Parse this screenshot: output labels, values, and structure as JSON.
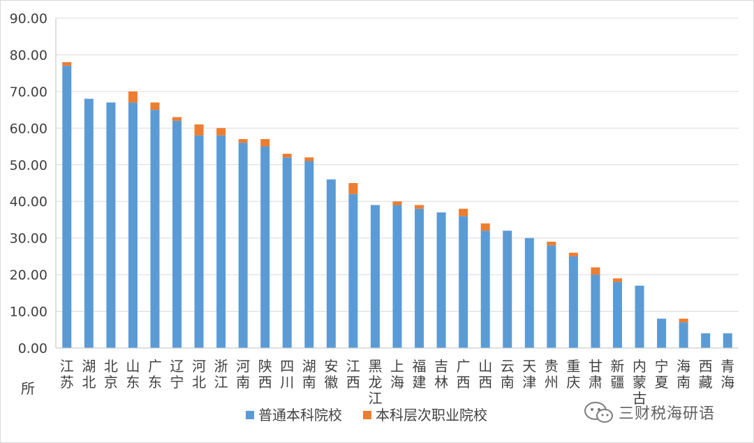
{
  "chart_data": {
    "type": "bar",
    "stacked": true,
    "title": "",
    "xlabel": "",
    "ylabel": "",
    "ylim": [
      0,
      90
    ],
    "yticks": [
      "0.00",
      "10.00",
      "20.00",
      "30.00",
      "40.00",
      "50.00",
      "60.00",
      "70.00",
      "80.00",
      "90.00"
    ],
    "grid": true,
    "legend_position": "bottom",
    "categories": [
      "江苏",
      "湖北",
      "北京",
      "山东",
      "广东",
      "辽宁",
      "河北",
      "浙江",
      "河南",
      "陕西",
      "四川",
      "湖南",
      "安徽",
      "江西",
      "黑龙江",
      "上海",
      "福建",
      "吉林",
      "广西",
      "山西",
      "云南",
      "天津",
      "贵州",
      "重庆",
      "甘肃",
      "新疆",
      "内蒙古",
      "宁夏",
      "海南",
      "西藏",
      "青海"
    ],
    "series": [
      {
        "name": "普通本科院校",
        "color": "#5b9bd5",
        "values": [
          77,
          68,
          67,
          67,
          65,
          62,
          58,
          58,
          56,
          55,
          52,
          51,
          46,
          42,
          39,
          39,
          38,
          37,
          36,
          32,
          32,
          30,
          28,
          25,
          20,
          18,
          17,
          8,
          7,
          4,
          4
        ]
      },
      {
        "name": "本科层次职业院校",
        "color": "#ed7d31",
        "values": [
          1,
          0,
          0,
          3,
          2,
          1,
          3,
          2,
          1,
          2,
          1,
          1,
          0,
          3,
          0,
          1,
          1,
          0,
          2,
          2,
          0,
          0,
          1,
          1,
          2,
          1,
          0,
          0,
          1,
          0,
          0
        ]
      }
    ]
  },
  "unit_label": "所",
  "watermark": "三财税海研语"
}
